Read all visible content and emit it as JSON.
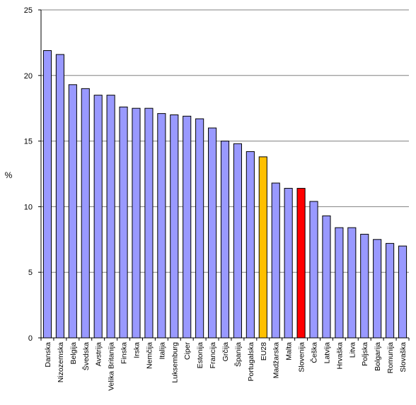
{
  "chart_data": {
    "type": "bar",
    "ylabel": "%",
    "xlabel": "",
    "ylim": [
      0,
      25
    ],
    "yticks": [
      0,
      5,
      10,
      15,
      20,
      25
    ],
    "grid": "horizontal",
    "categories": [
      "Danska",
      "Nizozemska",
      "Belgija",
      "Švedska",
      "Avstrija",
      "Velika Britanija",
      "Finska",
      "Irska",
      "Nemčija",
      "Italija",
      "Luksemburg",
      "Ciper",
      "Estonija",
      "Francija",
      "Grčija",
      "Španija",
      "Portugalska",
      "EU28",
      "Madžarska",
      "Malta",
      "Slovenija",
      "Češka",
      "Latvija",
      "Hrvaška",
      "Litva",
      "Poljska",
      "Bolgarija",
      "Romunija",
      "Slovaška"
    ],
    "values": [
      21.9,
      21.6,
      19.3,
      19.0,
      18.5,
      18.5,
      17.6,
      17.5,
      17.5,
      17.1,
      17.0,
      16.9,
      16.7,
      16.0,
      15.0,
      14.8,
      14.2,
      13.8,
      11.8,
      11.4,
      11.4,
      10.4,
      9.3,
      8.4,
      8.4,
      7.9,
      7.5,
      7.2,
      7.0
    ],
    "colors": {
      "default": "#9999ff",
      "EU28": "#ffc000",
      "Slovenija": "#ff0000",
      "gridline": "#808080",
      "bar_border": "#000000"
    }
  }
}
